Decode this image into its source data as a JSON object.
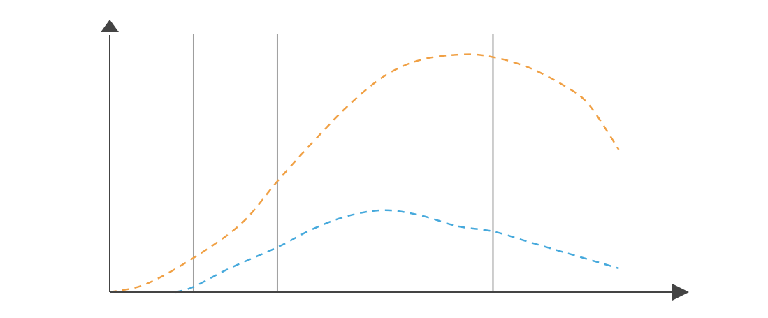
{
  "chart_data": {
    "type": "line",
    "title": "",
    "xlabel": "",
    "ylabel": "",
    "xlim": [
      0,
      100
    ],
    "ylim": [
      0,
      100
    ],
    "grid": false,
    "axis_color": "#444444",
    "vertical_lines": {
      "color": "#9e9e9e",
      "x": [
        14,
        28,
        64
      ]
    },
    "series": [
      {
        "color": "#f0a044",
        "style": "dashed",
        "points": [
          [
            0,
            0
          ],
          [
            6,
            3
          ],
          [
            14,
            13
          ],
          [
            22,
            26
          ],
          [
            28,
            42
          ],
          [
            34,
            57
          ],
          [
            40,
            71
          ],
          [
            46,
            82
          ],
          [
            52,
            88
          ],
          [
            59,
            90
          ],
          [
            64,
            89
          ],
          [
            70,
            85
          ],
          [
            76,
            78
          ],
          [
            80,
            71
          ],
          [
            85,
            54
          ]
        ]
      },
      {
        "color": "#46a9dc",
        "style": "dashed",
        "points": [
          [
            11,
            0
          ],
          [
            14,
            2
          ],
          [
            20,
            9
          ],
          [
            28,
            17
          ],
          [
            34,
            24
          ],
          [
            40,
            29
          ],
          [
            46,
            31
          ],
          [
            52,
            29
          ],
          [
            58,
            25
          ],
          [
            64,
            23
          ],
          [
            70,
            19
          ],
          [
            76,
            15
          ],
          [
            82,
            11
          ],
          [
            85,
            9
          ]
        ]
      }
    ]
  }
}
